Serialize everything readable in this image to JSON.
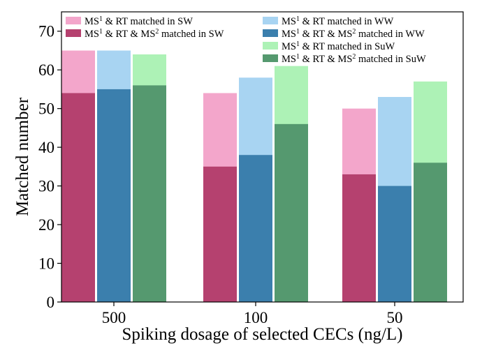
{
  "chart_data": {
    "type": "bar",
    "title": "",
    "xlabel": "Spiking dosage of selected CECs (ng/L)",
    "ylabel": "Matched number",
    "ylim": [
      0,
      75
    ],
    "yticks": [
      0,
      10,
      20,
      30,
      40,
      50,
      60,
      70
    ],
    "categories": [
      "500",
      "100",
      "50"
    ],
    "grid": false,
    "legend_position": "top",
    "groups": [
      {
        "key": "SW",
        "colors": {
          "rt": "#f3a6cb",
          "ms2": "#b5416f"
        },
        "series": [
          {
            "name_prefix": "MS",
            "sup": "1",
            "name_suffix": " & RT matched in SW",
            "values": [
              65,
              54,
              50
            ]
          },
          {
            "name_prefix": "MS",
            "sup": "1",
            "name_mid": " & RT & MS",
            "sup2": "2",
            "name_suffix": " matched in SW",
            "values": [
              54,
              35,
              33
            ]
          }
        ]
      },
      {
        "key": "WW",
        "colors": {
          "rt": "#a8d4f2",
          "ms2": "#3b7fad"
        },
        "series": [
          {
            "name_prefix": "MS",
            "sup": "1",
            "name_suffix": " & RT matched in WW",
            "values": [
              65,
              58,
              53
            ]
          },
          {
            "name_prefix": "MS",
            "sup": "1",
            "name_mid": " & RT & MS",
            "sup2": "2",
            "name_suffix": " matched in WW",
            "values": [
              55,
              38,
              30
            ]
          }
        ]
      },
      {
        "key": "SuW",
        "colors": {
          "rt": "#adf2b6",
          "ms2": "#55996f"
        },
        "series": [
          {
            "name_prefix": "MS",
            "sup": "1",
            "name_suffix": " & RT matched in SuW",
            "values": [
              64,
              61,
              57
            ]
          },
          {
            "name_prefix": "MS",
            "sup": "1",
            "name_mid": " & RT & MS",
            "sup2": "2",
            "name_suffix": " matched in SuW",
            "values": [
              56,
              46,
              36
            ]
          }
        ]
      }
    ]
  }
}
